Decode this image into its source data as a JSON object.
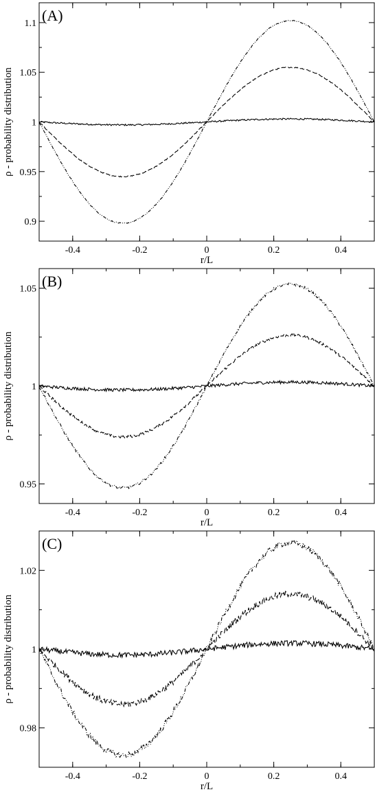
{
  "chart_data": [
    {
      "type": "line",
      "panel_label": "(A)",
      "xlabel": "r/L",
      "ylabel": "ρ - probability distribution",
      "xlim": [
        -0.5,
        0.5
      ],
      "ylim": [
        0.88,
        1.12
      ],
      "xticks": [
        -0.4,
        -0.2,
        0,
        0.2,
        0.4
      ],
      "xtick_labels": [
        "-0.4",
        "-0.2",
        "0",
        "0.2",
        "0.4"
      ],
      "yticks": [
        0.9,
        0.95,
        1,
        1.05,
        1.1
      ],
      "ytick_labels": [
        "0.9",
        "0.95",
        "1",
        "1.05",
        "1.1"
      ],
      "grid": false,
      "legend": "none",
      "series": [
        {
          "style": "solid",
          "amplitude": 0.003,
          "noise": 0.0008
        },
        {
          "style": "dashed",
          "amplitude": 0.055,
          "noise": 0.0005
        },
        {
          "style": "dash-dot-dot",
          "amplitude": 0.102,
          "noise": 0.0005
        }
      ]
    },
    {
      "type": "line",
      "panel_label": "(B)",
      "xlabel": "r/L",
      "ylabel": "ρ - probability distribution",
      "xlim": [
        -0.5,
        0.5
      ],
      "ylim": [
        0.94,
        1.06
      ],
      "xticks": [
        -0.4,
        -0.2,
        0,
        0.2,
        0.4
      ],
      "xtick_labels": [
        "-0.4",
        "-0.2",
        "0",
        "0.2",
        "0.4"
      ],
      "yticks": [
        0.95,
        1,
        1.05
      ],
      "ytick_labels": [
        "0.95",
        "1",
        "1.05"
      ],
      "grid": false,
      "legend": "none",
      "series": [
        {
          "style": "solid",
          "amplitude": 0.002,
          "noise": 0.0008
        },
        {
          "style": "dashed",
          "amplitude": 0.026,
          "noise": 0.0007
        },
        {
          "style": "dash-dot-dot",
          "amplitude": 0.052,
          "noise": 0.0007
        }
      ]
    },
    {
      "type": "line",
      "panel_label": "(C)",
      "xlabel": "r/L",
      "ylabel": "ρ - probability distribution",
      "xlim": [
        -0.5,
        0.5
      ],
      "ylim": [
        0.97,
        1.03
      ],
      "xticks": [
        -0.4,
        -0.2,
        0,
        0.2,
        0.4
      ],
      "xtick_labels": [
        "-0.4",
        "-0.2",
        "0",
        "0.2",
        "0.4"
      ],
      "yticks": [
        0.98,
        1,
        1.02
      ],
      "ytick_labels": [
        "0.98",
        "1",
        "1.02"
      ],
      "grid": false,
      "legend": "none",
      "series": [
        {
          "style": "solid",
          "amplitude": 0.0015,
          "noise": 0.0007
        },
        {
          "style": "dashed",
          "amplitude": 0.014,
          "noise": 0.0008
        },
        {
          "style": "dash-dot-dot",
          "amplitude": 0.027,
          "noise": 0.0008
        }
      ]
    }
  ]
}
